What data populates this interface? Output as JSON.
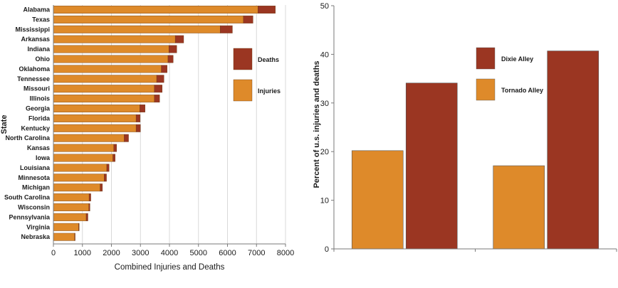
{
  "chart_data": [
    {
      "type": "bar",
      "orientation": "horizontal",
      "stacked": true,
      "title": "",
      "xlabel": "Combined Injuries and Deaths",
      "ylabel": "State",
      "xlim": [
        0,
        8000
      ],
      "xticks": [
        0,
        1000,
        2000,
        3000,
        4000,
        5000,
        6000,
        7000,
        8000
      ],
      "grid": "vertical",
      "legend_position": "right",
      "categories": [
        "Alabama",
        "Texas",
        "Mississippi",
        "Arkansas",
        "Indiana",
        "Ohio",
        "Oklahoma",
        "Tennessee",
        "Missouri",
        "Illinois",
        "Georgia",
        "Florida",
        "Kentucky",
        "North Carolina",
        "Kansas",
        "Iowa",
        "Louisiana",
        "Minnesota",
        "Michigan",
        "South Carolina",
        "Wisconsin",
        "Pennsylvania",
        "Virginia",
        "Nebraska"
      ],
      "series": [
        {
          "name": "Injuries",
          "color": "#de8a2a",
          "values": [
            7050,
            6550,
            5750,
            4200,
            3980,
            3950,
            3720,
            3560,
            3480,
            3480,
            2980,
            2850,
            2850,
            2440,
            2080,
            2050,
            1840,
            1750,
            1610,
            1230,
            1220,
            1130,
            870,
            730
          ]
        },
        {
          "name": "Deaths",
          "color": "#9b3622",
          "values": [
            600,
            330,
            420,
            290,
            270,
            180,
            200,
            250,
            270,
            180,
            180,
            140,
            150,
            150,
            100,
            80,
            80,
            80,
            80,
            60,
            40,
            60,
            20,
            20
          ]
        }
      ]
    },
    {
      "type": "bar",
      "title": "",
      "xlabel": "",
      "ylabel": "Percent of u.s. injuries and deaths",
      "ylim": [
        0,
        50
      ],
      "yticks": [
        0,
        10,
        20,
        30,
        40,
        50
      ],
      "grid": "none",
      "legend_position": "top-center",
      "categories": [
        "",
        ""
      ],
      "series": [
        {
          "name": "Tornado Alley",
          "color": "#de8a2a",
          "values": [
            20.2,
            17.1
          ]
        },
        {
          "name": "Dixie Alley",
          "color": "#9b3622",
          "values": [
            34.1,
            40.7
          ]
        }
      ]
    }
  ]
}
